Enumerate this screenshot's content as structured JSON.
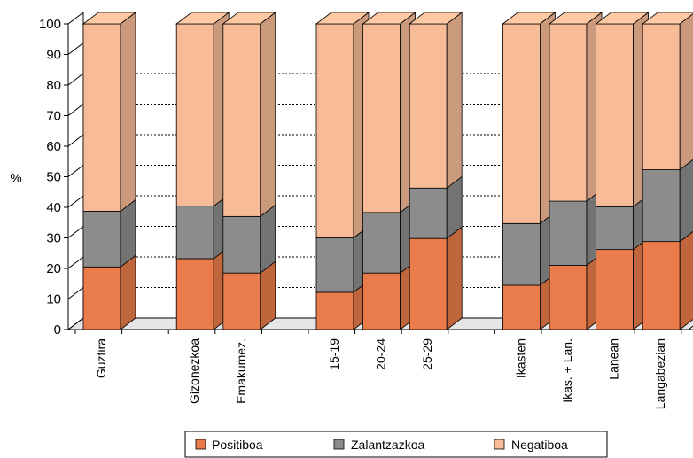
{
  "chart_data": {
    "type": "bar",
    "stacked": true,
    "three_d": true,
    "ylabel": "%",
    "xlabel": "",
    "ylim": [
      0,
      100
    ],
    "yticks": [
      "0",
      "10",
      "20",
      "30",
      "40",
      "50",
      "60",
      "70",
      "80",
      "90",
      "100"
    ],
    "grid": "dotted horizontal",
    "legend_position": "bottom",
    "categories": [
      "Guztira",
      "",
      "Gizonezkoa",
      "Emakumez.",
      "",
      "15-19",
      "20-24",
      "25-29",
      "",
      "Ikasten",
      "Ikas. + Lan.",
      "Lanean",
      "Langabezian"
    ],
    "series": [
      {
        "name": "Positiboa",
        "color": "#e97c4a",
        "values": [
          20.5,
          null,
          23.2,
          18.5,
          null,
          12.2,
          18.5,
          29.8,
          null,
          14.5,
          21.0,
          26.2,
          28.8
        ]
      },
      {
        "name": "Zalantzazkoa",
        "color": "#8c8c8c",
        "values": [
          18.2,
          null,
          17.2,
          18.5,
          null,
          17.8,
          19.8,
          16.5,
          null,
          20.2,
          21.0,
          14.0,
          23.5
        ]
      },
      {
        "name": "Negatiboa",
        "color": "#f7bb97",
        "values": [
          61.3,
          null,
          59.6,
          63.0,
          null,
          70.0,
          61.7,
          53.7,
          null,
          65.3,
          58.0,
          59.8,
          47.7
        ]
      }
    ]
  }
}
